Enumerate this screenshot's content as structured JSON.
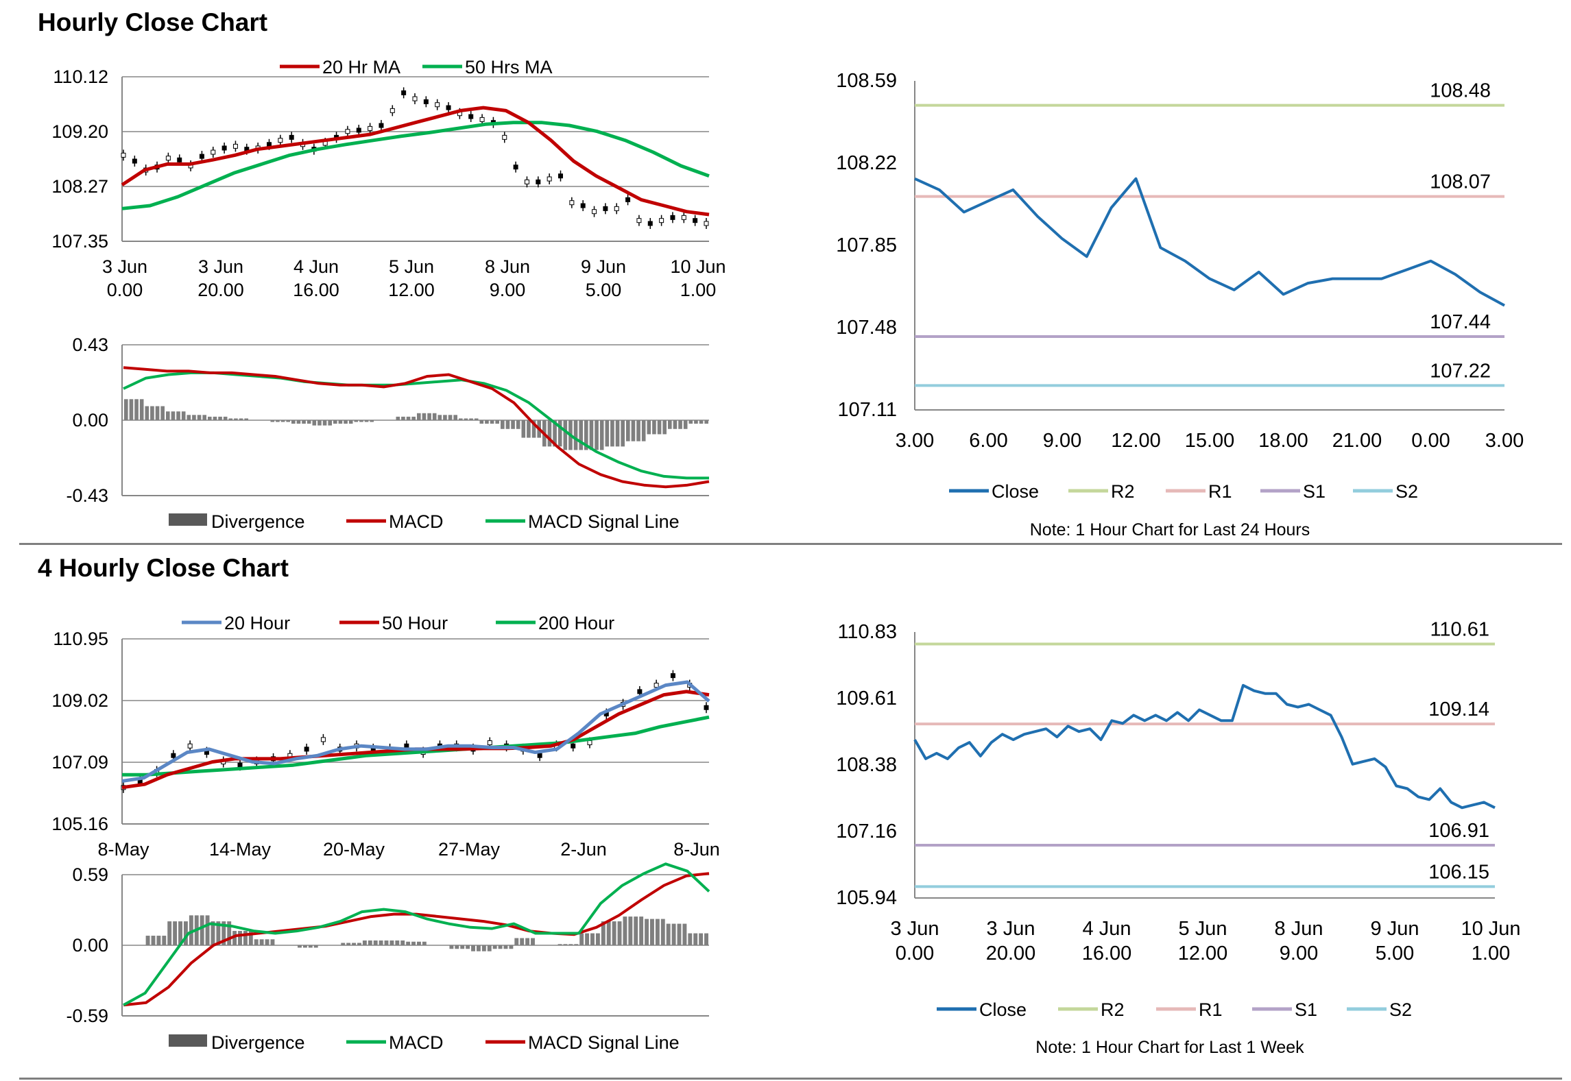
{
  "colors": {
    "ma20": "#c00000",
    "ma50": "#00b050",
    "close": "#1f6fb0",
    "r2": "#c4d79b",
    "r1": "#e6b9b8",
    "s1": "#b3a2c7",
    "s2": "#93cddd",
    "blue_ma": "#5b87c5",
    "div": "#7f7f7f",
    "grid": "#868686"
  },
  "sections": {
    "hourly_title": "Hourly Close Chart",
    "four_hourly_title": "4 Hourly Close Chart"
  },
  "chart_data": [
    {
      "id": "hourly_price",
      "type": "line",
      "title": "",
      "legend": [
        "20 Hr MA",
        "50 Hrs MA"
      ],
      "yticks": [
        "110.12",
        "109.20",
        "108.27",
        "107.35"
      ],
      "ylim": [
        107.35,
        110.12
      ],
      "xticks": [
        [
          "3 Jun",
          "0.00"
        ],
        [
          "3 Jun",
          "20.00"
        ],
        [
          "4 Jun",
          "16.00"
        ],
        [
          "5 Jun",
          "12.00"
        ],
        [
          "8 Jun",
          "9.00"
        ],
        [
          "9 Jun",
          "5.00"
        ],
        [
          "10 Jun",
          "1.00"
        ]
      ],
      "series": [
        {
          "name": "Close (candles)",
          "values": [
            108.8,
            108.7,
            108.55,
            108.6,
            108.75,
            108.72,
            108.62,
            108.78,
            108.85,
            108.92,
            108.95,
            108.9,
            108.92,
            108.98,
            109.05,
            109.1,
            108.98,
            108.9,
            109.0,
            109.1,
            109.2,
            109.22,
            109.25,
            109.3,
            109.55,
            109.85,
            109.75,
            109.7,
            109.65,
            109.6,
            109.5,
            109.45,
            109.4,
            109.35,
            109.1,
            108.6,
            108.35,
            108.35,
            108.4,
            108.45,
            108.0,
            107.95,
            107.85,
            107.9,
            107.9,
            108.05,
            107.7,
            107.65,
            107.7,
            107.75,
            107.75,
            107.7,
            107.65
          ]
        },
        {
          "name": "20 Hr MA",
          "values": [
            108.3,
            108.55,
            108.65,
            108.65,
            108.72,
            108.8,
            108.9,
            108.95,
            109.0,
            109.05,
            109.1,
            109.15,
            109.25,
            109.35,
            109.45,
            109.55,
            109.6,
            109.55,
            109.35,
            109.05,
            108.7,
            108.45,
            108.25,
            108.05,
            107.95,
            107.85,
            107.8
          ]
        },
        {
          "name": "50 Hrs MA",
          "values": [
            107.9,
            107.95,
            108.1,
            108.3,
            108.5,
            108.65,
            108.8,
            108.9,
            108.98,
            109.05,
            109.12,
            109.18,
            109.25,
            109.32,
            109.35,
            109.35,
            109.3,
            109.2,
            109.05,
            108.85,
            108.62,
            108.45
          ]
        }
      ]
    },
    {
      "id": "hourly_macd",
      "type": "line",
      "yticks": [
        "0.43",
        "0.00",
        "-0.43"
      ],
      "ylim": [
        -0.43,
        0.43
      ],
      "legend": [
        "Divergence",
        "MACD",
        "MACD Signal Line"
      ],
      "series": [
        {
          "name": "MACD",
          "values": [
            0.3,
            0.29,
            0.28,
            0.28,
            0.27,
            0.27,
            0.26,
            0.25,
            0.23,
            0.21,
            0.2,
            0.2,
            0.19,
            0.21,
            0.25,
            0.26,
            0.22,
            0.18,
            0.1,
            -0.03,
            -0.15,
            -0.25,
            -0.31,
            -0.35,
            -0.37,
            -0.38,
            -0.37,
            -0.35
          ]
        },
        {
          "name": "MACD Signal Line",
          "values": [
            0.18,
            0.24,
            0.26,
            0.27,
            0.27,
            0.26,
            0.25,
            0.24,
            0.22,
            0.21,
            0.2,
            0.2,
            0.2,
            0.21,
            0.22,
            0.23,
            0.21,
            0.17,
            0.1,
            0.0,
            -0.1,
            -0.18,
            -0.24,
            -0.29,
            -0.32,
            -0.33,
            -0.33
          ]
        },
        {
          "name": "Divergence",
          "values": [
            0.12,
            0.08,
            0.05,
            0.03,
            0.02,
            0.01,
            0.0,
            -0.01,
            -0.02,
            -0.03,
            -0.02,
            -0.01,
            0.0,
            0.02,
            0.04,
            0.03,
            0.01,
            -0.02,
            -0.05,
            -0.1,
            -0.15,
            -0.17,
            -0.17,
            -0.15,
            -0.12,
            -0.08,
            -0.05,
            -0.02
          ]
        }
      ]
    },
    {
      "id": "hourly_pivot",
      "type": "line",
      "yticks": [
        "108.59",
        "108.22",
        "107.85",
        "107.48",
        "107.11"
      ],
      "ylim": [
        107.11,
        108.59
      ],
      "xticks": [
        "3.00",
        "6.00",
        "9.00",
        "12.00",
        "15.00",
        "18.00",
        "21.00",
        "0.00",
        "3.00"
      ],
      "levels": {
        "R2": "108.48",
        "R1": "108.07",
        "S1": "107.44",
        "S2": "107.22"
      },
      "level_values": {
        "R2": 108.48,
        "R1": 108.07,
        "S1": 107.44,
        "S2": 107.22
      },
      "legend": [
        "Close",
        "R2",
        "R1",
        "S1",
        "S2"
      ],
      "note": "Note: 1 Hour Chart for Last 24 Hours",
      "series": [
        {
          "name": "Close",
          "values": [
            108.15,
            108.1,
            108.0,
            108.05,
            108.1,
            107.98,
            107.88,
            107.8,
            108.02,
            108.15,
            107.84,
            107.78,
            107.7,
            107.65,
            107.73,
            107.63,
            107.68,
            107.7,
            107.7,
            107.7,
            107.74,
            107.78,
            107.72,
            107.64,
            107.58
          ]
        }
      ]
    },
    {
      "id": "four_hourly_price",
      "type": "line",
      "legend": [
        "20 Hour",
        "50 Hour",
        "200 Hour"
      ],
      "yticks": [
        "110.95",
        "109.02",
        "107.09",
        "105.16"
      ],
      "ylim": [
        105.16,
        110.95
      ],
      "xticks": [
        "8-May",
        "14-May",
        "20-May",
        "27-May",
        "2-Jun",
        "8-Jun"
      ],
      "series": [
        {
          "name": "Close (candles)",
          "values": [
            106.3,
            106.5,
            106.8,
            107.3,
            107.6,
            107.4,
            107.1,
            107.0,
            107.1,
            107.2,
            107.3,
            107.5,
            107.8,
            107.5,
            107.6,
            107.5,
            107.5,
            107.6,
            107.4,
            107.6,
            107.6,
            107.5,
            107.7,
            107.6,
            107.5,
            107.3,
            107.6,
            107.6,
            107.7,
            108.6,
            108.9,
            109.3,
            109.5,
            109.8,
            109.5,
            108.8
          ]
        },
        {
          "name": "20 Hour",
          "values": [
            106.5,
            106.6,
            107.0,
            107.4,
            107.5,
            107.3,
            107.1,
            107.05,
            107.2,
            107.3,
            107.5,
            107.6,
            107.55,
            107.5,
            107.5,
            107.6,
            107.6,
            107.55,
            107.55,
            107.4,
            107.5,
            108.0,
            108.6,
            108.9,
            109.2,
            109.5,
            109.6,
            109.0
          ]
        },
        {
          "name": "50 Hour",
          "values": [
            106.3,
            106.4,
            106.7,
            106.9,
            107.1,
            107.2,
            107.2,
            107.2,
            107.25,
            107.3,
            107.35,
            107.4,
            107.45,
            107.5,
            107.5,
            107.5,
            107.52,
            107.52,
            107.55,
            107.6,
            107.8,
            108.2,
            108.6,
            108.9,
            109.2,
            109.3,
            109.2
          ]
        },
        {
          "name": "200 Hour",
          "values": [
            106.7,
            106.7,
            106.75,
            106.8,
            106.85,
            106.9,
            106.95,
            107.0,
            107.1,
            107.2,
            107.3,
            107.35,
            107.4,
            107.45,
            107.5,
            107.55,
            107.6,
            107.65,
            107.7,
            107.8,
            107.9,
            108.0,
            108.2,
            108.35,
            108.5
          ]
        }
      ]
    },
    {
      "id": "four_hourly_macd",
      "type": "line",
      "yticks": [
        "0.59",
        "0.00",
        "-0.59"
      ],
      "ylim": [
        -0.59,
        0.59
      ],
      "legend": [
        "Divergence",
        "MACD",
        "MACD Signal Line"
      ],
      "series": [
        {
          "name": "MACD",
          "values": [
            -0.5,
            -0.4,
            -0.15,
            0.1,
            0.18,
            0.16,
            0.12,
            0.1,
            0.12,
            0.15,
            0.2,
            0.28,
            0.3,
            0.28,
            0.22,
            0.18,
            0.15,
            0.14,
            0.18,
            0.1,
            0.1,
            0.1,
            0.35,
            0.5,
            0.6,
            0.68,
            0.62,
            0.45
          ]
        },
        {
          "name": "MACD Signal Line",
          "values": [
            -0.5,
            -0.48,
            -0.35,
            -0.15,
            0.0,
            0.08,
            0.1,
            0.12,
            0.14,
            0.16,
            0.2,
            0.24,
            0.26,
            0.26,
            0.24,
            0.22,
            0.2,
            0.17,
            0.12,
            0.1,
            0.09,
            0.15,
            0.25,
            0.38,
            0.5,
            0.58,
            0.6
          ]
        },
        {
          "name": "Divergence",
          "values": [
            0.0,
            0.08,
            0.2,
            0.25,
            0.2,
            0.12,
            0.05,
            0.0,
            -0.02,
            0.0,
            0.02,
            0.04,
            0.04,
            0.03,
            0.0,
            -0.03,
            -0.05,
            -0.03,
            0.06,
            0.0,
            0.01,
            0.1,
            0.2,
            0.24,
            0.22,
            0.18,
            0.1
          ]
        }
      ]
    },
    {
      "id": "four_hourly_pivot",
      "type": "line",
      "yticks": [
        "110.83",
        "109.61",
        "108.38",
        "107.16",
        "105.94"
      ],
      "ylim": [
        105.94,
        110.83
      ],
      "xticks": [
        [
          "3 Jun",
          "0.00"
        ],
        [
          "3 Jun",
          "20.00"
        ],
        [
          "4 Jun",
          "16.00"
        ],
        [
          "5 Jun",
          "12.00"
        ],
        [
          "8 Jun",
          "9.00"
        ],
        [
          "9 Jun",
          "5.00"
        ],
        [
          "10 Jun",
          "1.00"
        ]
      ],
      "levels": {
        "R2": "110.61",
        "R1": "109.14",
        "S1": "106.91",
        "S2": "106.15"
      },
      "level_values": {
        "R2": 110.61,
        "R1": 109.14,
        "S1": 106.91,
        "S2": 106.15
      },
      "legend": [
        "Close",
        "R2",
        "R1",
        "S1",
        "S2"
      ],
      "note": "Note: 1 Hour Chart for Last 1 Week",
      "series": [
        {
          "name": "Close",
          "values": [
            108.85,
            108.5,
            108.6,
            108.5,
            108.7,
            108.8,
            108.55,
            108.8,
            108.95,
            108.85,
            108.95,
            109.0,
            109.05,
            108.9,
            109.1,
            109.0,
            109.05,
            108.85,
            109.2,
            109.15,
            109.3,
            109.2,
            109.3,
            109.2,
            109.35,
            109.2,
            109.4,
            109.3,
            109.2,
            109.2,
            109.85,
            109.75,
            109.7,
            109.7,
            109.5,
            109.45,
            109.5,
            109.4,
            109.3,
            108.9,
            108.4,
            108.45,
            108.5,
            108.35,
            108.0,
            107.95,
            107.8,
            107.75,
            107.95,
            107.7,
            107.6,
            107.65,
            107.7,
            107.6
          ]
        }
      ]
    }
  ]
}
